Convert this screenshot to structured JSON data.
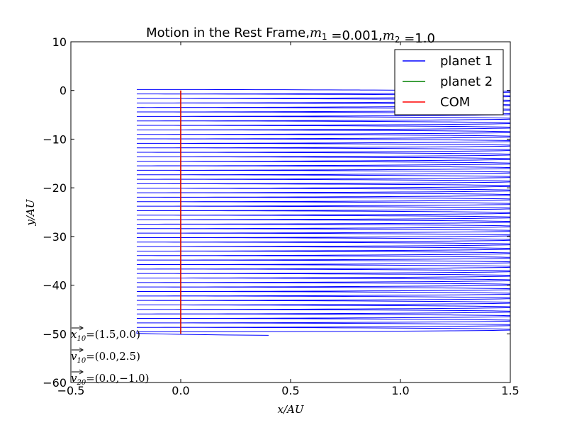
{
  "chart_data": {
    "type": "line",
    "title": "Motion in the Rest Frame,m₁ =0.001,m₂ =1.0",
    "xlabel": "x/AU",
    "ylabel": "y/AU",
    "xlim": [
      -0.5,
      1.5
    ],
    "ylim": [
      -60,
      10
    ],
    "xticks": [
      -0.5,
      0.0,
      0.5,
      1.0,
      1.5
    ],
    "xtick_labels": [
      "−0.5",
      "0.0",
      "0.5",
      "1.0",
      "1.5"
    ],
    "yticks": [
      10,
      0,
      -10,
      -20,
      -30,
      -40,
      -50,
      -60
    ],
    "ytick_labels": [
      "10",
      "0",
      "−10",
      "−20",
      "−30",
      "−40",
      "−50",
      "−60"
    ],
    "grid": false,
    "legend_position": "top-right",
    "series": [
      {
        "name": "planet 1",
        "color": "#0000ff",
        "description": "oscillating trajectory",
        "x_range": [
          -0.2,
          1.5
        ],
        "y_range": [
          -50.3,
          0.2
        ],
        "end_point": [
          0.4,
          -50.3
        ]
      },
      {
        "name": "planet 2",
        "color": "#008000",
        "x": [
          0.0,
          0.0
        ],
        "y": [
          0.0,
          -50.0
        ]
      },
      {
        "name": "COM",
        "color": "#ff0000",
        "x": [
          0.0,
          0.0
        ],
        "y": [
          0.0,
          -50.0
        ]
      }
    ],
    "annotations": [
      "x⃗10 =(1.5,0.0)",
      "v⃗10 =(0.0,2.5)",
      "v⃗20 =(0.0,−1.0)"
    ]
  }
}
